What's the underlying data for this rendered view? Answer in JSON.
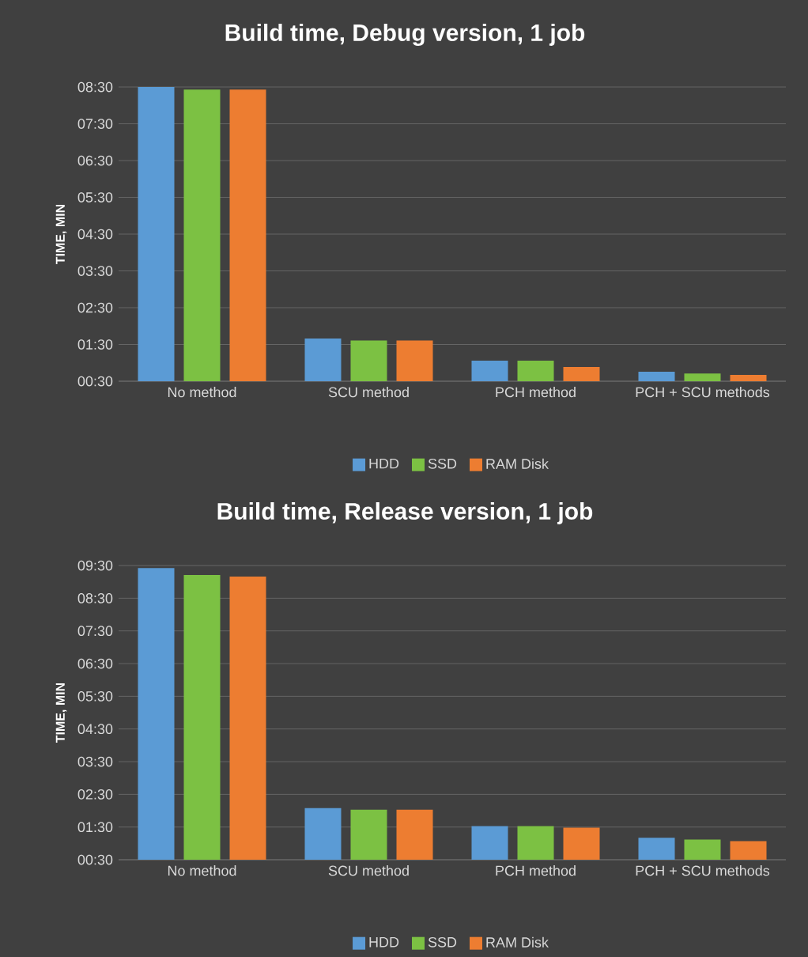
{
  "chart_data": [
    {
      "type": "bar",
      "title": "Build time, Debug version,  1 job",
      "ylabel": "TIME, MIN",
      "categories": [
        "No method",
        "SCU method",
        "PCH method",
        "PCH + SCU methods"
      ],
      "series": [
        {
          "name": "HDD",
          "color": "#5b9bd5",
          "values": [
            8.5,
            1.66,
            1.06,
            0.76
          ]
        },
        {
          "name": "SSD",
          "color": "#7cc143",
          "values": [
            8.43,
            1.61,
            1.06,
            0.71
          ]
        },
        {
          "name": "RAM Disk",
          "color": "#ed7d31",
          "values": [
            8.43,
            1.61,
            0.89,
            0.67
          ]
        }
      ],
      "ylim": [
        0.5,
        8.5
      ],
      "yticks": [
        {
          "value": 0.5,
          "label": "00:30"
        },
        {
          "value": 1.5,
          "label": "01:30"
        },
        {
          "value": 2.5,
          "label": "02:30"
        },
        {
          "value": 3.5,
          "label": "03:30"
        },
        {
          "value": 4.5,
          "label": "04:30"
        },
        {
          "value": 5.5,
          "label": "05:30"
        },
        {
          "value": 6.5,
          "label": "06:30"
        },
        {
          "value": 7.5,
          "label": "07:30"
        },
        {
          "value": 8.5,
          "label": "08:30"
        }
      ],
      "grid": "y",
      "legend": "bottom"
    },
    {
      "type": "bar",
      "title": "Build time, Release version,  1 job",
      "ylabel": "TIME, MIN",
      "categories": [
        "No method",
        "SCU method",
        "PCH method",
        "PCH + SCU methods"
      ],
      "series": [
        {
          "name": "HDD",
          "color": "#5b9bd5",
          "values": [
            9.42,
            2.08,
            1.53,
            1.17
          ]
        },
        {
          "name": "SSD",
          "color": "#7cc143",
          "values": [
            9.21,
            2.03,
            1.53,
            1.12
          ]
        },
        {
          "name": "RAM Disk",
          "color": "#ed7d31",
          "values": [
            9.16,
            2.03,
            1.48,
            1.07
          ]
        }
      ],
      "ylim": [
        0.5,
        9.5
      ],
      "yticks": [
        {
          "value": 0.5,
          "label": "00:30"
        },
        {
          "value": 1.5,
          "label": "01:30"
        },
        {
          "value": 2.5,
          "label": "02:30"
        },
        {
          "value": 3.5,
          "label": "03:30"
        },
        {
          "value": 4.5,
          "label": "04:30"
        },
        {
          "value": 5.5,
          "label": "05:30"
        },
        {
          "value": 6.5,
          "label": "06:30"
        },
        {
          "value": 7.5,
          "label": "07:30"
        },
        {
          "value": 8.5,
          "label": "08:30"
        },
        {
          "value": 9.5,
          "label": "09:30"
        }
      ],
      "grid": "y",
      "legend": "bottom"
    }
  ]
}
